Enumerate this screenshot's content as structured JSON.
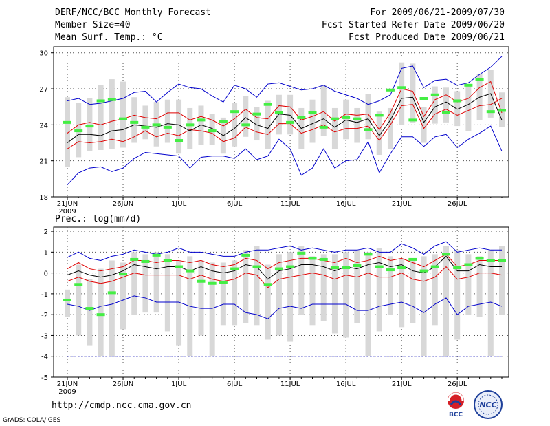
{
  "header": {
    "title": "DERF/NCC/BCC Monthly Forecast",
    "member_size": "Member Size=40",
    "variable": "Mean Surf. Temp.: °C",
    "period": "For 2009/06/21-2009/07/30",
    "fcst_started": "Fcst Started Refer Date 2009/06/20",
    "fcst_produced": "Fcst Produced Date 2009/06/21"
  },
  "footer": {
    "url": "http://cmdp.ncc.cma.gov.cn",
    "grads_credit": "GrADS: COLA/IGES",
    "logo1_text": "BCC",
    "logo2_text": "NCC"
  },
  "colors": {
    "mean": "#000000",
    "spread": "#e00000",
    "extreme": "#0000cc",
    "box": "#d8d8d8",
    "climo": "#44ee44",
    "grid": "#555555"
  },
  "chart_data": [
    {
      "type": "line",
      "title": "Mean Surf. Temp.: °C",
      "ylim": [
        18,
        30.5
      ],
      "yticks": [
        18,
        21,
        24,
        27,
        30
      ],
      "xticklabels": [
        "21JUN",
        "26JUN",
        "1JUL",
        "6JUL",
        "11JUL",
        "16JUL",
        "21JUL",
        "26JUL"
      ],
      "xtick_days": [
        0,
        5,
        10,
        15,
        20,
        25,
        30,
        35
      ],
      "year_label": "2009",
      "x_days": [
        0,
        1,
        2,
        3,
        4,
        5,
        6,
        7,
        8,
        9,
        10,
        11,
        12,
        13,
        14,
        15,
        16,
        17,
        18,
        19,
        20,
        21,
        22,
        23,
        24,
        25,
        26,
        27,
        28,
        29,
        30,
        31,
        32,
        33,
        34,
        35,
        36,
        37,
        38,
        39
      ],
      "series": [
        {
          "name": "max",
          "values": [
            19.0,
            20.0,
            20.4,
            20.5,
            20.1,
            20.4,
            21.2,
            21.7,
            21.6,
            21.5,
            21.4,
            20.4,
            21.3,
            21.4,
            21.4,
            21.2,
            22.0,
            21.1,
            21.4,
            22.8,
            22.0,
            19.8,
            20.4,
            22.0,
            20.4,
            21.0,
            21.1,
            22.6,
            20.0,
            21.6,
            23.0,
            23.0,
            22.2,
            23.0,
            23.2,
            22.1,
            22.8,
            23.3,
            23.9,
            21.8
          ]
        },
        {
          "name": "upper",
          "values": [
            26.0,
            26.2,
            25.7,
            25.8,
            26.0,
            26.2,
            26.7,
            26.8,
            25.9,
            26.7,
            27.4,
            27.1,
            27.0,
            26.4,
            25.9,
            27.3,
            27.0,
            26.3,
            27.4,
            27.5,
            27.2,
            26.9,
            27.0,
            27.3,
            26.8,
            26.5,
            26.2,
            25.7,
            26.0,
            26.5,
            28.7,
            28.9,
            27.1,
            27.7,
            27.8,
            27.3,
            27.5,
            28.2,
            28.8,
            29.7
          ]
        },
        {
          "name": "lower_spread",
          "values": [
            22.0,
            22.6,
            22.5,
            22.6,
            22.8,
            22.6,
            23.0,
            23.5,
            23.0,
            23.3,
            23.1,
            23.6,
            23.5,
            23.3,
            22.6,
            22.9,
            23.8,
            23.4,
            23.2,
            24.1,
            24.1,
            23.3,
            23.6,
            24.0,
            23.4,
            23.7,
            23.7,
            23.9,
            22.7,
            24.0,
            25.6,
            25.7,
            23.7,
            24.9,
            25.3,
            24.8,
            25.2,
            25.6,
            25.7,
            26.2
          ]
        },
        {
          "name": "upper_spread",
          "values": [
            23.3,
            24.0,
            24.2,
            24.0,
            24.3,
            24.5,
            24.8,
            24.6,
            24.5,
            25.0,
            25.0,
            24.4,
            24.7,
            24.4,
            23.9,
            24.5,
            25.3,
            24.6,
            24.5,
            25.6,
            25.5,
            24.4,
            24.7,
            25.1,
            24.3,
            24.9,
            24.8,
            24.9,
            23.6,
            25.0,
            27.0,
            26.8,
            24.7,
            26.1,
            26.5,
            25.9,
            26.2,
            27.1,
            27.6,
            25.0
          ]
        },
        {
          "name": "mean",
          "values": [
            22.5,
            23.2,
            23.2,
            23.1,
            23.5,
            23.6,
            24.0,
            23.9,
            23.8,
            24.1,
            24.0,
            23.5,
            24.0,
            23.7,
            23.1,
            23.7,
            24.6,
            24.0,
            23.7,
            24.9,
            24.8,
            23.7,
            24.1,
            24.5,
            23.8,
            24.4,
            24.2,
            24.5,
            23.1,
            24.4,
            26.2,
            26.3,
            24.2,
            25.5,
            25.9,
            25.3,
            25.7,
            26.3,
            26.6,
            24.4
          ]
        },
        {
          "name": "box_low",
          "values": [
            20.5,
            21.3,
            21.8,
            21.9,
            22.0,
            22.1,
            22.5,
            22.8,
            22.2,
            22.5,
            21.6,
            22.0,
            22.3,
            22.3,
            21.6,
            22.2,
            23.0,
            22.7,
            22.0,
            23.2,
            23.2,
            22.0,
            22.5,
            23.1,
            22.0,
            22.8,
            22.5,
            22.8,
            21.5,
            22.0,
            24.0,
            24.2,
            22.5,
            24.1,
            24.2,
            23.9,
            23.5,
            24.4,
            24.6,
            23.8
          ]
        },
        {
          "name": "box_high",
          "values": [
            26.3,
            25.8,
            26.2,
            27.3,
            27.8,
            27.6,
            26.3,
            25.6,
            25.9,
            26.1,
            26.1,
            25.4,
            25.6,
            24.9,
            24.6,
            25.8,
            26.4,
            25.5,
            26.0,
            26.5,
            26.5,
            25.4,
            26.1,
            27.3,
            25.4,
            26.1,
            25.4,
            26.6,
            25.1,
            25.4,
            29.2,
            29.1,
            25.5,
            27.2,
            27.1,
            26.8,
            27.2,
            28.2,
            28.6,
            26.7
          ]
        },
        {
          "name": "climatology",
          "values": [
            24.2,
            23.5,
            23.9,
            26.0,
            26.1,
            24.5,
            24.2,
            23.8,
            24.0,
            23.8,
            22.7,
            24.0,
            24.4,
            23.5,
            24.3,
            25.1,
            24.0,
            24.9,
            25.7,
            25.0,
            24.2,
            24.6,
            25.0,
            23.8,
            24.5,
            24.6,
            24.5,
            23.6,
            24.8,
            26.9,
            27.1,
            24.4,
            26.2,
            26.5,
            25.0,
            26.0,
            27.3,
            27.8,
            25.1,
            25.2
          ]
        }
      ]
    },
    {
      "type": "line",
      "title": "Prec.: log(mm/d)",
      "ylim": [
        -5,
        2.2
      ],
      "yticks": [
        -5,
        -4,
        -3,
        -2,
        -1,
        0,
        1,
        2
      ],
      "xticklabels": [
        "21JUN",
        "26JUN",
        "1JUL",
        "6JUL",
        "11JUL",
        "16JUL",
        "21JUL",
        "26JUL"
      ],
      "xtick_days": [
        0,
        5,
        10,
        15,
        20,
        25,
        30,
        35
      ],
      "year_label": "2009",
      "x_days": [
        0,
        1,
        2,
        3,
        4,
        5,
        6,
        7,
        8,
        9,
        10,
        11,
        12,
        13,
        14,
        15,
        16,
        17,
        18,
        19,
        20,
        21,
        22,
        23,
        24,
        25,
        26,
        27,
        28,
        29,
        30,
        31,
        32,
        33,
        34,
        35,
        36,
        37,
        38,
        39
      ],
      "min_line": -4,
      "series": [
        {
          "name": "max",
          "values": [
            0.75,
            1.0,
            0.7,
            0.6,
            0.8,
            0.9,
            1.1,
            1.0,
            0.9,
            1.0,
            1.2,
            1.0,
            1.0,
            0.9,
            0.8,
            0.8,
            1.0,
            1.1,
            1.1,
            1.2,
            1.3,
            1.1,
            1.2,
            1.1,
            1.0,
            1.1,
            1.1,
            1.2,
            1.0,
            1.0,
            1.4,
            1.2,
            0.9,
            1.3,
            1.5,
            1.0,
            1.1,
            1.2,
            1.1,
            1.1
          ]
        },
        {
          "name": "upper_spread",
          "values": [
            0.2,
            0.5,
            0.2,
            0.1,
            0.2,
            0.3,
            0.6,
            0.6,
            0.5,
            0.6,
            0.6,
            0.5,
            0.6,
            0.4,
            0.3,
            0.4,
            0.7,
            0.6,
            0.2,
            0.5,
            0.6,
            0.7,
            0.7,
            0.6,
            0.5,
            0.7,
            0.5,
            0.6,
            0.8,
            0.6,
            0.7,
            0.5,
            0.3,
            0.6,
            0.9,
            0.3,
            0.4,
            0.6,
            0.6,
            0.6
          ]
        },
        {
          "name": "mean",
          "values": [
            -0.1,
            0.1,
            -0.1,
            -0.2,
            -0.1,
            0.1,
            0.4,
            0.3,
            0.2,
            0.3,
            0.3,
            0.1,
            0.3,
            0.1,
            0.0,
            0.1,
            0.4,
            0.3,
            -0.3,
            0.1,
            0.2,
            0.4,
            0.4,
            0.3,
            0.1,
            0.3,
            0.2,
            0.4,
            0.5,
            0.3,
            0.4,
            0.1,
            0.0,
            0.3,
            0.8,
            0.1,
            0.1,
            0.4,
            0.3,
            0.3
          ]
        },
        {
          "name": "lower_spread",
          "values": [
            -0.4,
            -0.2,
            -0.4,
            -0.5,
            -0.4,
            -0.2,
            0.0,
            -0.1,
            -0.1,
            -0.1,
            -0.1,
            -0.3,
            -0.1,
            -0.3,
            -0.4,
            -0.3,
            0.0,
            -0.1,
            -0.7,
            -0.3,
            -0.2,
            -0.1,
            0.0,
            -0.1,
            -0.3,
            -0.1,
            -0.2,
            0.0,
            -0.2,
            -0.2,
            0.0,
            -0.3,
            -0.4,
            -0.2,
            0.3,
            -0.3,
            -0.2,
            0.0,
            0.0,
            -0.1
          ]
        },
        {
          "name": "min",
          "values": [
            -1.5,
            -1.6,
            -1.8,
            -1.6,
            -1.5,
            -1.3,
            -1.1,
            -1.2,
            -1.4,
            -1.4,
            -1.4,
            -1.6,
            -1.7,
            -1.7,
            -1.5,
            -1.5,
            -1.9,
            -2.0,
            -2.2,
            -1.7,
            -1.6,
            -1.7,
            -1.5,
            -1.5,
            -1.5,
            -1.5,
            -1.8,
            -1.8,
            -1.6,
            -1.5,
            -1.4,
            -1.6,
            -1.9,
            -1.5,
            -1.2,
            -2.0,
            -1.6,
            -1.5,
            -1.4,
            -1.6
          ]
        },
        {
          "name": "box_low",
          "values": [
            -2.1,
            -3.0,
            -3.5,
            -4.0,
            -4.0,
            -2.7,
            -2.0,
            -1.9,
            -1.9,
            -2.8,
            -3.5,
            -4.0,
            -3.0,
            -4.0,
            -2.5,
            -2.5,
            -2.4,
            -2.5,
            -3.2,
            -3.0,
            -3.3,
            -2.0,
            -2.5,
            -2.3,
            -2.9,
            -3.1,
            -2.4,
            -4.0,
            -2.8,
            -2.0,
            -2.6,
            -2.4,
            -4.0,
            -2.5,
            -4.0,
            -3.2,
            -2.0,
            -2.1,
            -4.0,
            -2.0
          ]
        },
        {
          "name": "box_high",
          "values": [
            -0.8,
            0.4,
            -0.3,
            0.2,
            0.6,
            0.5,
            1.0,
            0.9,
            1.0,
            0.9,
            0.6,
            0.8,
            0.6,
            0.5,
            0.5,
            0.6,
            1.1,
            1.3,
            0.4,
            0.9,
            1.0,
            1.3,
            0.8,
            0.9,
            0.9,
            1.0,
            1.1,
            1.0,
            1.2,
            0.8,
            0.7,
            0.7,
            0.8,
            0.9,
            1.3,
            1.1,
            0.9,
            0.8,
            1.1,
            1.3
          ]
        },
        {
          "name": "climatology",
          "values": [
            -1.3,
            -0.55,
            -1.7,
            -2.0,
            -0.95,
            -0.05,
            0.65,
            0.55,
            0.85,
            0.6,
            0.3,
            0.1,
            -0.4,
            -0.5,
            -0.45,
            0.2,
            0.85,
            0.3,
            -0.55,
            0.2,
            0.3,
            0.95,
            0.7,
            0.65,
            0.25,
            0.25,
            0.35,
            0.9,
            0.3,
            0.15,
            0.25,
            0.65,
            0.1,
            0.3,
            0.9,
            0.25,
            0.4,
            0.7,
            0.6,
            0.6
          ]
        }
      ]
    }
  ]
}
